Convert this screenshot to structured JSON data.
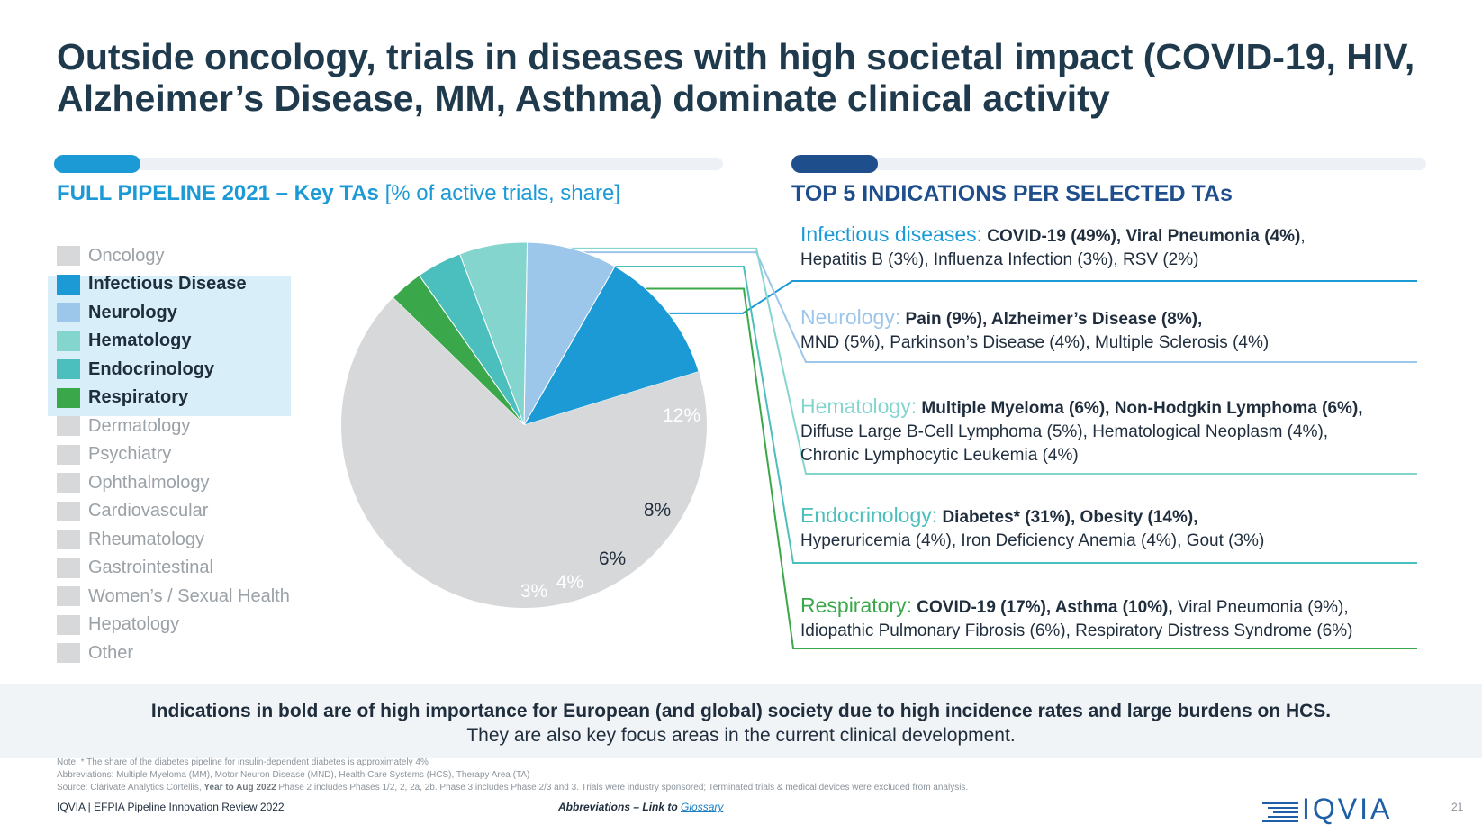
{
  "title": "Outside oncology, trials in diseases with high societal impact (COVID-19, HIV, Alzheimer’s Disease, MM, Asthma) dominate clinical activity",
  "left_section": {
    "heading_bold": "FULL PIPELINE 2021 – Key TAs",
    "heading_rest": " [% of active trials, share]"
  },
  "right_section": {
    "heading": "TOP 5 INDICATIONS PER SELECTED TAs"
  },
  "colors": {
    "accent_light": "#1b9ad6",
    "accent_dark": "#1f4e8c",
    "track": "#edf1f5",
    "pie_grey": "#d7d8da"
  },
  "chart_data": {
    "type": "pie",
    "title": "FULL PIPELINE 2021 – Key TAs [% of active trials, share]",
    "slices": [
      {
        "name": "Infectious Disease",
        "value": 12,
        "label": "12%",
        "color": "#1b9ad6",
        "highlight": true
      },
      {
        "name": "Neurology",
        "value": 8,
        "label": "8%",
        "color": "#9cc6ea",
        "highlight": true
      },
      {
        "name": "Hematology",
        "value": 6,
        "label": "6%",
        "color": "#85d5cf",
        "highlight": true
      },
      {
        "name": "Endocrinology",
        "value": 4,
        "label": "4%",
        "color": "#4bbfbd",
        "highlight": true
      },
      {
        "name": "Respiratory",
        "value": 3,
        "label": "3%",
        "color": "#3aa84a",
        "highlight": true
      },
      {
        "name": "Other TAs",
        "value": 67,
        "label": "",
        "color": "#d7d8da",
        "highlight": false
      }
    ],
    "legend": [
      {
        "name": "Oncology",
        "color": "#d7d8da",
        "highlight": false
      },
      {
        "name": "Infectious Disease",
        "color": "#1b9ad6",
        "highlight": true
      },
      {
        "name": "Neurology",
        "color": "#9cc6ea",
        "highlight": true
      },
      {
        "name": "Hematology",
        "color": "#85d5cf",
        "highlight": true
      },
      {
        "name": "Endocrinology",
        "color": "#4bbfbd",
        "highlight": true
      },
      {
        "name": "Respiratory",
        "color": "#3aa84a",
        "highlight": true
      },
      {
        "name": "Dermatology",
        "color": "#d7d8da",
        "highlight": false
      },
      {
        "name": "Psychiatry",
        "color": "#d7d8da",
        "highlight": false
      },
      {
        "name": "Ophthalmology",
        "color": "#d7d8da",
        "highlight": false
      },
      {
        "name": "Cardiovascular",
        "color": "#d7d8da",
        "highlight": false
      },
      {
        "name": "Rheumatology",
        "color": "#d7d8da",
        "highlight": false
      },
      {
        "name": "Gastrointestinal",
        "color": "#d7d8da",
        "highlight": false
      },
      {
        "name": "Women’s / Sexual Health",
        "color": "#d7d8da",
        "highlight": false
      },
      {
        "name": "Hepatology",
        "color": "#d7d8da",
        "highlight": false
      },
      {
        "name": "Other",
        "color": "#d7d8da",
        "highlight": false
      }
    ]
  },
  "indications": [
    {
      "label": "Infectious diseases:",
      "color": "#1b9ad6",
      "line1_bold": "COVID-19 (49%), Viral Pneumonia (4%)",
      "line1_rest": ",",
      "line2": "Hepatitis B (3%), Influenza Infection (3%), RSV (2%)",
      "line3": ""
    },
    {
      "label": "Neurology:",
      "color": "#9cc6ea",
      "line1_bold": "Pain (9%), Alzheimer’s Disease (8%),",
      "line1_rest": "",
      "line2": "MND (5%), Parkinson’s Disease (4%), Multiple Sclerosis (4%)",
      "line3": ""
    },
    {
      "label": "Hematology:",
      "color": "#85d5cf",
      "line1_bold": "Multiple Myeloma (6%), Non-Hodgkin Lymphoma (6%),",
      "line1_rest": "",
      "line2": "Diffuse Large B-Cell Lymphoma (5%), Hematological Neoplasm (4%),",
      "line3": "Chronic Lymphocytic Leukemia (4%)"
    },
    {
      "label": "Endocrinology:",
      "color": "#4bbfbd",
      "line1_bold": "Diabetes* (31%), Obesity (14%),",
      "line1_rest": "",
      "line2": "Hyperuricemia (4%), Iron Deficiency Anemia (4%), Gout (3%)",
      "line3": ""
    },
    {
      "label": "Respiratory:",
      "color": "#3aa84a",
      "line1_bold": "COVID-19 (17%), Asthma (10%),",
      "line1_rest": " Viral Pneumonia (9%),",
      "line2": "Idiopathic Pulmonary Fibrosis (6%), Respiratory Distress Syndrome (6%)",
      "line3": ""
    }
  ],
  "footer": {
    "bold": "Indications in bold are of high importance for European (and global) society due to high incidence rates and large burdens on HCS.",
    "regular": "They are also key focus areas in the current clinical development."
  },
  "notes": {
    "note": "Note: * The share of the diabetes pipeline for insulin-dependent diabetes is approximately 4%",
    "abbreviations": "Abbreviations: Multiple Myeloma (MM), Motor Neuron Disease (MND), Health Care Systems (HCS), Therapy Area (TA)",
    "source_pre": "Source: Clarivate Analytics Cortellis, ",
    "source_bold": "Year to Aug 2022",
    "source_post": " Phase 2 includes Phases 1/2, 2, 2a, 2b. Phase 3 includes Phase 2/3 and 3. Trials were industry sponsored; Terminated trials & medical devices were excluded from analysis."
  },
  "source_line": "IQVIA | EFPIA Pipeline Innovation Review 2022",
  "abbr_link": {
    "text": "Abbreviations – Link to ",
    "link": "Glossary"
  },
  "logo": {
    "text": "IQVIA",
    "icon": "iqvia-lines-icon"
  },
  "page_number": "21"
}
